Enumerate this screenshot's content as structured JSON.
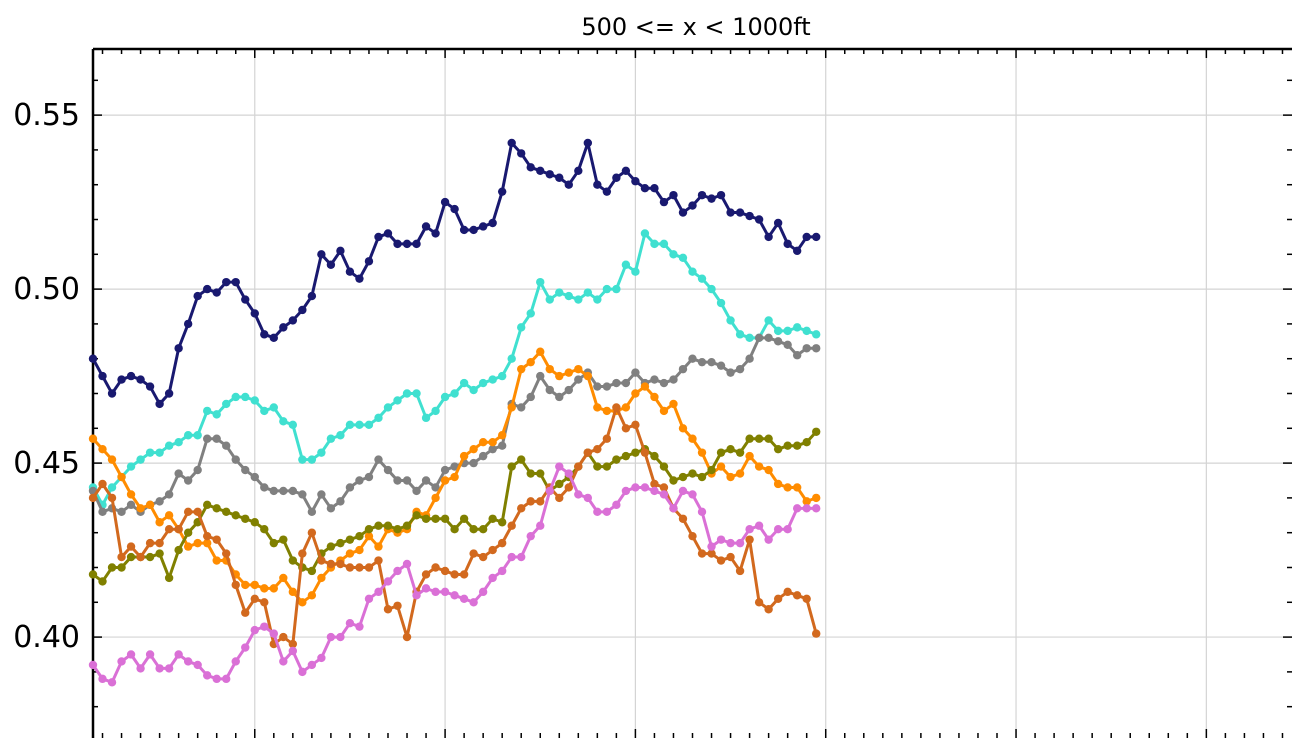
{
  "chart_data": {
    "type": "line",
    "title": "500 <= x < 1000ft",
    "xlabel": "",
    "ylabel": "",
    "ylim": [
      0.371,
      0.569
    ],
    "xlim": [
      0,
      126
    ],
    "grid": true,
    "x_major_ticks": [
      17,
      37,
      57,
      77,
      97,
      117
    ],
    "yticks": [
      0.4,
      0.45,
      0.5,
      0.55
    ],
    "ytick_labels": [
      "0.40",
      "0.45",
      "0.50",
      "0.55"
    ],
    "series": [
      {
        "color": "#191970",
        "values": [
          0.48,
          0.475,
          0.47,
          0.474,
          0.475,
          0.474,
          0.472,
          0.467,
          0.47,
          0.483,
          0.49,
          0.498,
          0.5,
          0.499,
          0.502,
          0.502,
          0.497,
          0.493,
          0.487,
          0.486,
          0.489,
          0.491,
          0.494,
          0.498,
          0.51,
          0.507,
          0.511,
          0.505,
          0.503,
          0.508,
          0.515,
          0.516,
          0.513,
          0.513,
          0.513,
          0.518,
          0.516,
          0.525,
          0.523,
          0.517,
          0.517,
          0.518,
          0.519,
          0.528,
          0.542,
          0.539,
          0.535,
          0.534,
          0.533,
          0.532,
          0.53,
          0.534,
          0.542,
          0.53,
          0.528,
          0.532,
          0.534,
          0.531,
          0.529,
          0.529,
          0.525,
          0.527,
          0.522,
          0.524,
          0.527,
          0.526,
          0.527,
          0.522,
          0.522,
          0.521,
          0.52,
          0.515,
          0.519,
          0.513,
          0.511,
          0.515,
          0.515
        ]
      },
      {
        "color": "#40e0d0",
        "values": [
          0.443,
          0.438,
          0.443,
          0.446,
          0.449,
          0.451,
          0.453,
          0.453,
          0.455,
          0.456,
          0.458,
          0.458,
          0.465,
          0.464,
          0.467,
          0.469,
          0.469,
          0.468,
          0.465,
          0.466,
          0.462,
          0.461,
          0.451,
          0.451,
          0.453,
          0.457,
          0.458,
          0.461,
          0.461,
          0.461,
          0.463,
          0.466,
          0.468,
          0.47,
          0.47,
          0.463,
          0.465,
          0.469,
          0.47,
          0.473,
          0.471,
          0.473,
          0.474,
          0.475,
          0.48,
          0.489,
          0.493,
          0.502,
          0.497,
          0.499,
          0.498,
          0.497,
          0.499,
          0.497,
          0.5,
          0.5,
          0.507,
          0.505,
          0.516,
          0.513,
          0.513,
          0.51,
          0.509,
          0.505,
          0.503,
          0.5,
          0.496,
          0.491,
          0.487,
          0.486,
          0.486,
          0.491,
          0.488,
          0.488,
          0.489,
          0.488,
          0.487
        ]
      },
      {
        "color": "#808080",
        "values": [
          0.442,
          0.436,
          0.437,
          0.436,
          0.438,
          0.436,
          0.438,
          0.439,
          0.441,
          0.447,
          0.445,
          0.448,
          0.457,
          0.457,
          0.455,
          0.451,
          0.448,
          0.446,
          0.443,
          0.442,
          0.442,
          0.442,
          0.441,
          0.436,
          0.441,
          0.437,
          0.439,
          0.443,
          0.445,
          0.446,
          0.451,
          0.448,
          0.445,
          0.445,
          0.442,
          0.445,
          0.443,
          0.448,
          0.449,
          0.45,
          0.45,
          0.452,
          0.454,
          0.455,
          0.467,
          0.466,
          0.469,
          0.475,
          0.471,
          0.469,
          0.471,
          0.474,
          0.476,
          0.472,
          0.472,
          0.473,
          0.473,
          0.476,
          0.473,
          0.474,
          0.473,
          0.474,
          0.477,
          0.48,
          0.479,
          0.479,
          0.478,
          0.476,
          0.477,
          0.48,
          0.486,
          0.486,
          0.485,
          0.484,
          0.481,
          0.483,
          0.483
        ]
      },
      {
        "color": "#ff8c00",
        "values": [
          0.457,
          0.454,
          0.451,
          0.446,
          0.441,
          0.437,
          0.438,
          0.433,
          0.435,
          0.431,
          0.426,
          0.427,
          0.427,
          0.422,
          0.422,
          0.418,
          0.415,
          0.415,
          0.414,
          0.414,
          0.417,
          0.413,
          0.41,
          0.412,
          0.417,
          0.42,
          0.422,
          0.424,
          0.425,
          0.429,
          0.426,
          0.431,
          0.43,
          0.431,
          0.436,
          0.435,
          0.44,
          0.445,
          0.446,
          0.452,
          0.454,
          0.456,
          0.456,
          0.458,
          0.466,
          0.477,
          0.479,
          0.482,
          0.477,
          0.475,
          0.476,
          0.477,
          0.475,
          0.466,
          0.465,
          0.465,
          0.466,
          0.47,
          0.472,
          0.469,
          0.465,
          0.467,
          0.46,
          0.457,
          0.453,
          0.447,
          0.449,
          0.446,
          0.447,
          0.452,
          0.449,
          0.448,
          0.444,
          0.443,
          0.443,
          0.439,
          0.44
        ]
      },
      {
        "color": "#808000",
        "values": [
          0.418,
          0.416,
          0.42,
          0.42,
          0.423,
          0.423,
          0.423,
          0.424,
          0.417,
          0.425,
          0.43,
          0.433,
          0.438,
          0.437,
          0.436,
          0.435,
          0.434,
          0.433,
          0.431,
          0.427,
          0.428,
          0.422,
          0.42,
          0.419,
          0.424,
          0.426,
          0.427,
          0.428,
          0.429,
          0.431,
          0.432,
          0.432,
          0.431,
          0.432,
          0.435,
          0.434,
          0.434,
          0.434,
          0.431,
          0.434,
          0.431,
          0.431,
          0.434,
          0.433,
          0.449,
          0.451,
          0.447,
          0.447,
          0.442,
          0.444,
          0.446,
          0.449,
          0.453,
          0.449,
          0.449,
          0.451,
          0.452,
          0.453,
          0.454,
          0.452,
          0.449,
          0.445,
          0.446,
          0.447,
          0.446,
          0.448,
          0.453,
          0.454,
          0.453,
          0.457,
          0.457,
          0.457,
          0.454,
          0.455,
          0.455,
          0.456,
          0.459
        ]
      },
      {
        "color": "#d2691e",
        "values": [
          0.44,
          0.444,
          0.44,
          0.423,
          0.426,
          0.423,
          0.427,
          0.427,
          0.431,
          0.431,
          0.436,
          0.436,
          0.429,
          0.428,
          0.424,
          0.415,
          0.407,
          0.411,
          0.41,
          0.398,
          0.4,
          0.398,
          0.424,
          0.43,
          0.422,
          0.421,
          0.421,
          0.42,
          0.42,
          0.42,
          0.422,
          0.408,
          0.409,
          0.4,
          0.413,
          0.418,
          0.42,
          0.419,
          0.418,
          0.418,
          0.424,
          0.423,
          0.425,
          0.427,
          0.432,
          0.437,
          0.439,
          0.439,
          0.443,
          0.44,
          0.443,
          0.449,
          0.453,
          0.454,
          0.457,
          0.466,
          0.46,
          0.461,
          0.453,
          0.444,
          0.443,
          0.437,
          0.434,
          0.429,
          0.424,
          0.424,
          0.422,
          0.423,
          0.419,
          0.428,
          0.41,
          0.408,
          0.411,
          0.413,
          0.412,
          0.411,
          0.401
        ]
      },
      {
        "color": "#da70d6",
        "values": [
          0.392,
          0.388,
          0.387,
          0.393,
          0.395,
          0.391,
          0.395,
          0.391,
          0.391,
          0.395,
          0.393,
          0.392,
          0.389,
          0.388,
          0.388,
          0.393,
          0.397,
          0.402,
          0.403,
          0.401,
          0.393,
          0.396,
          0.39,
          0.392,
          0.394,
          0.4,
          0.4,
          0.404,
          0.403,
          0.411,
          0.413,
          0.416,
          0.419,
          0.421,
          0.412,
          0.414,
          0.413,
          0.413,
          0.412,
          0.411,
          0.41,
          0.413,
          0.417,
          0.419,
          0.423,
          0.423,
          0.429,
          0.432,
          0.442,
          0.449,
          0.447,
          0.441,
          0.44,
          0.436,
          0.436,
          0.438,
          0.442,
          0.443,
          0.443,
          0.442,
          0.441,
          0.437,
          0.442,
          0.441,
          0.436,
          0.426,
          0.428,
          0.427,
          0.427,
          0.431,
          0.432,
          0.428,
          0.431,
          0.431,
          0.437,
          0.437,
          0.437
        ]
      }
    ]
  }
}
